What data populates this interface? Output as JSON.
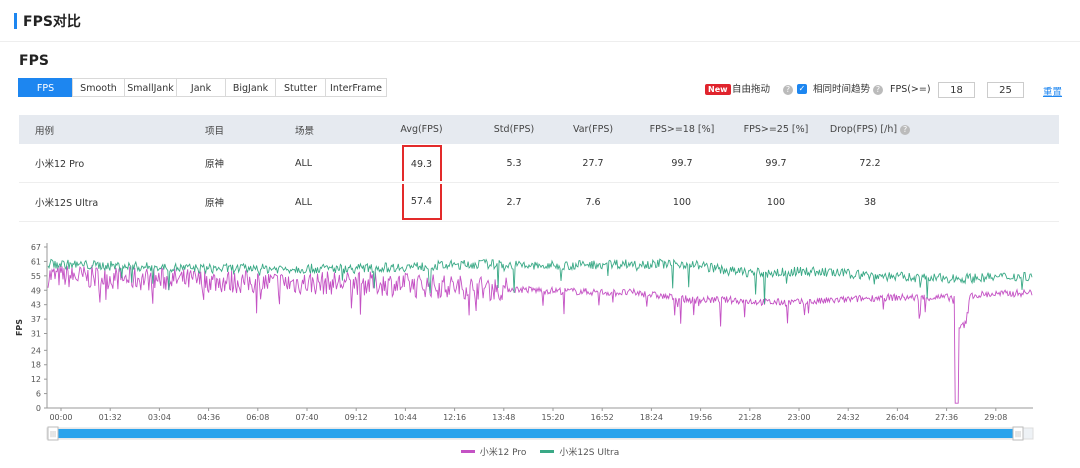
{
  "section_title": "FPS对比",
  "sub_title": "FPS",
  "tabs": [
    "FPS",
    "Smooth",
    "SmallJank",
    "Jank",
    "BigJank",
    "Stutter",
    "InterFrame"
  ],
  "active_tab": 0,
  "options": {
    "new_badge": "New",
    "free_drag": "自由拖动",
    "same_time_trend": "相同时间趋势",
    "fps_ge": "FPS(>=)",
    "threshold1": "18",
    "threshold2": "25",
    "reset": "重置",
    "help_glyph": "?"
  },
  "table": {
    "headers": [
      "用例",
      "项目",
      "场景",
      "Avg(FPS)",
      "Std(FPS)",
      "Var(FPS)",
      "FPS>=18 [%]",
      "FPS>=25 [%]",
      "Drop(FPS) [/h]"
    ],
    "rows": [
      [
        "小米12 Pro",
        "原神",
        "ALL",
        "49.3",
        "5.3",
        "27.7",
        "99.7",
        "99.7",
        "72.2"
      ],
      [
        "小米12S Ultra",
        "原神",
        "ALL",
        "57.4",
        "2.7",
        "7.6",
        "100",
        "100",
        "38"
      ]
    ]
  },
  "chart_data": {
    "type": "line",
    "ylabel": "FPS",
    "yticks": [
      0,
      6,
      12,
      18,
      24,
      31,
      37,
      43,
      49,
      55,
      61,
      67
    ],
    "ylim": [
      0,
      67
    ],
    "xticks": [
      "00:00",
      "01:32",
      "03:04",
      "04:36",
      "06:08",
      "07:40",
      "09:12",
      "10:44",
      "12:16",
      "13:48",
      "15:20",
      "16:52",
      "18:24",
      "19:56",
      "21:28",
      "23:00",
      "24:32",
      "26:04",
      "27:36",
      "29:08"
    ],
    "x_unit": "mm:ss",
    "series": [
      {
        "name": "小米12 Pro",
        "color": "#c452c4",
        "profile": [
          [
            0,
            55
          ],
          [
            80,
            54
          ],
          [
            160,
            53
          ],
          [
            240,
            52
          ],
          [
            320,
            52
          ],
          [
            400,
            51
          ],
          [
            460,
            50
          ],
          [
            520,
            49
          ],
          [
            600,
            48
          ],
          [
            620,
            48
          ],
          [
            680,
            45
          ],
          [
            720,
            45
          ],
          [
            760,
            44
          ],
          [
            800,
            44
          ],
          [
            880,
            46
          ],
          [
            930,
            46
          ],
          [
            958,
            46
          ],
          [
            960,
            2
          ],
          [
            962,
            33
          ],
          [
            970,
            35
          ],
          [
            975,
            47
          ],
          [
            1040,
            48
          ]
        ]
      },
      {
        "name": "小米12S Ultra",
        "color": "#3aa986",
        "profile": [
          [
            0,
            60
          ],
          [
            80,
            59
          ],
          [
            160,
            58
          ],
          [
            240,
            58
          ],
          [
            320,
            58
          ],
          [
            400,
            59
          ],
          [
            460,
            60
          ],
          [
            520,
            59
          ],
          [
            600,
            60
          ],
          [
            680,
            60
          ],
          [
            720,
            57
          ],
          [
            760,
            56
          ],
          [
            800,
            57
          ],
          [
            880,
            55
          ],
          [
            930,
            54
          ],
          [
            970,
            54
          ],
          [
            1040,
            55
          ]
        ]
      }
    ]
  },
  "legend": [
    "小米12 Pro",
    "小米12S Ultra"
  ]
}
